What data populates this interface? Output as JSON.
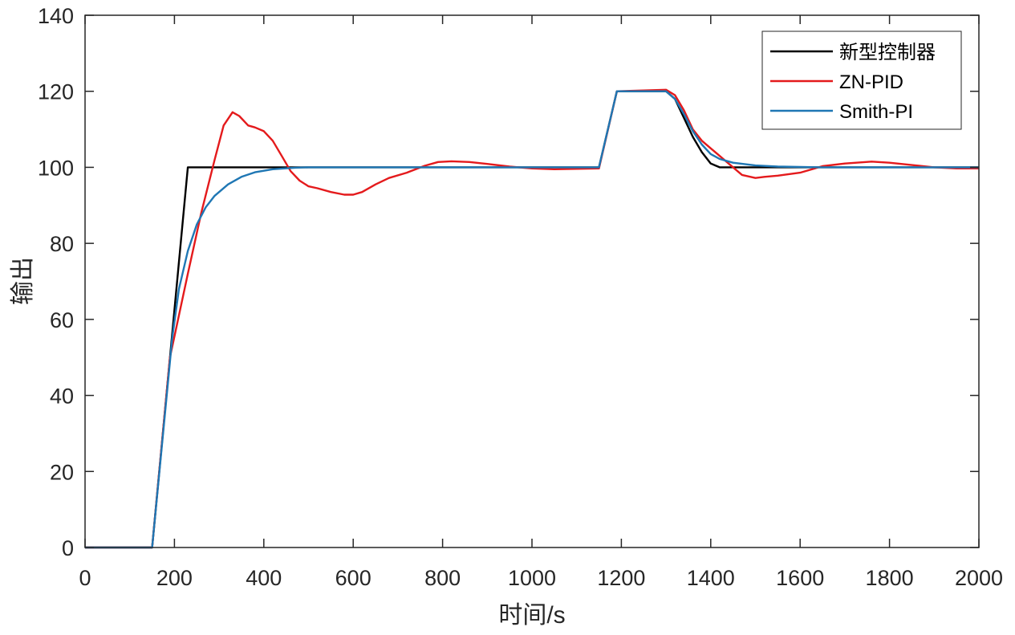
{
  "chart_data": {
    "type": "line",
    "xlabel": "时间/s",
    "ylabel": "输出",
    "xlim": [
      0,
      2000
    ],
    "ylim": [
      0,
      140
    ],
    "xticks": [
      0,
      200,
      400,
      600,
      800,
      1000,
      1200,
      1400,
      1600,
      1800,
      2000
    ],
    "yticks": [
      0,
      20,
      40,
      60,
      80,
      100,
      120,
      140
    ],
    "grid": false,
    "legend_position": "top-right",
    "series": [
      {
        "name": "新型控制器",
        "color": "#000000",
        "points": [
          [
            0,
            0
          ],
          [
            150,
            0
          ],
          [
            230,
            100
          ],
          [
            1150,
            100
          ],
          [
            1190,
            120
          ],
          [
            1300,
            120
          ],
          [
            1320,
            118
          ],
          [
            1340,
            113
          ],
          [
            1360,
            108
          ],
          [
            1380,
            104
          ],
          [
            1400,
            101
          ],
          [
            1420,
            100
          ],
          [
            2000,
            100
          ]
        ]
      },
      {
        "name": "ZN-PID",
        "color": "#e41a1c",
        "points": [
          [
            0,
            0
          ],
          [
            150,
            0
          ],
          [
            190,
            50
          ],
          [
            230,
            72
          ],
          [
            260,
            88
          ],
          [
            290,
            102
          ],
          [
            310,
            111
          ],
          [
            330,
            114.5
          ],
          [
            345,
            113.5
          ],
          [
            365,
            111
          ],
          [
            380,
            110.5
          ],
          [
            400,
            109.5
          ],
          [
            420,
            107
          ],
          [
            440,
            103
          ],
          [
            460,
            99
          ],
          [
            480,
            96.5
          ],
          [
            500,
            95
          ],
          [
            520,
            94.5
          ],
          [
            550,
            93.5
          ],
          [
            580,
            92.8
          ],
          [
            600,
            92.8
          ],
          [
            620,
            93.5
          ],
          [
            650,
            95.5
          ],
          [
            680,
            97.2
          ],
          [
            720,
            98.6
          ],
          [
            760,
            100.4
          ],
          [
            790,
            101.4
          ],
          [
            820,
            101.6
          ],
          [
            860,
            101.4
          ],
          [
            900,
            100.9
          ],
          [
            950,
            100.2
          ],
          [
            1000,
            99.7
          ],
          [
            1050,
            99.5
          ],
          [
            1100,
            99.6
          ],
          [
            1150,
            99.7
          ],
          [
            1190,
            120
          ],
          [
            1300,
            120.4
          ],
          [
            1320,
            119
          ],
          [
            1340,
            115
          ],
          [
            1360,
            110
          ],
          [
            1380,
            107
          ],
          [
            1400,
            105
          ],
          [
            1420,
            103
          ],
          [
            1450,
            100
          ],
          [
            1470,
            98
          ],
          [
            1500,
            97.2
          ],
          [
            1520,
            97.5
          ],
          [
            1550,
            97.8
          ],
          [
            1600,
            98.6
          ],
          [
            1650,
            100.3
          ],
          [
            1700,
            101
          ],
          [
            1760,
            101.5
          ],
          [
            1800,
            101.2
          ],
          [
            1850,
            100.6
          ],
          [
            1900,
            100
          ],
          [
            1950,
            99.7
          ],
          [
            2000,
            99.7
          ]
        ]
      },
      {
        "name": "Smith-PI",
        "color": "#1f77b4",
        "points": [
          [
            0,
            0
          ],
          [
            150,
            0
          ],
          [
            195,
            55
          ],
          [
            210,
            68
          ],
          [
            230,
            78
          ],
          [
            250,
            85
          ],
          [
            270,
            89.5
          ],
          [
            290,
            92.5
          ],
          [
            320,
            95.5
          ],
          [
            350,
            97.5
          ],
          [
            380,
            98.7
          ],
          [
            420,
            99.5
          ],
          [
            470,
            99.9
          ],
          [
            500,
            100
          ],
          [
            1150,
            100
          ],
          [
            1190,
            120
          ],
          [
            1300,
            120
          ],
          [
            1320,
            118
          ],
          [
            1340,
            114
          ],
          [
            1360,
            109.5
          ],
          [
            1380,
            106
          ],
          [
            1400,
            103.5
          ],
          [
            1420,
            102.2
          ],
          [
            1450,
            101.2
          ],
          [
            1500,
            100.5
          ],
          [
            1550,
            100.2
          ],
          [
            1600,
            100.1
          ],
          [
            1650,
            100
          ],
          [
            2000,
            100
          ]
        ]
      }
    ]
  }
}
